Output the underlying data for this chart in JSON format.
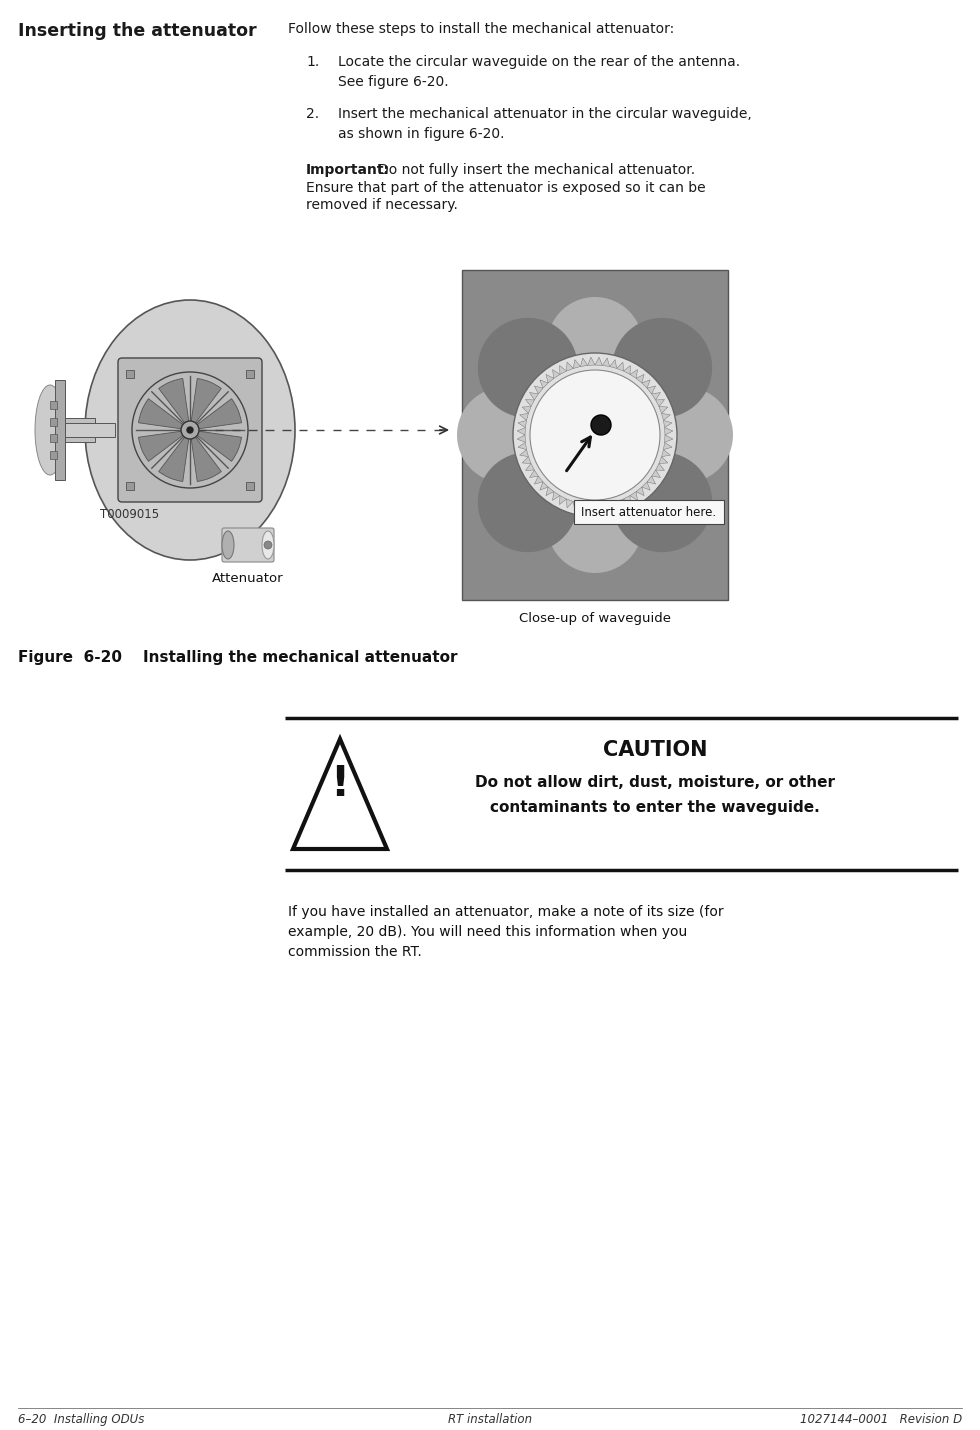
{
  "title_left": "Inserting the attenuator",
  "intro_text": "Follow these steps to install the mechanical attenuator:",
  "step1_num": "1.",
  "step1_text": "Locate the circular waveguide on the rear of the antenna.\nSee figure 6-20.",
  "step2_num": "2.",
  "step2_text": "Insert the mechanical attenuator in the circular waveguide,\nas shown in figure 6-20.",
  "important_bold": "Important:",
  "important_rest": " Do not fully insert the mechanical attenuator.\nEnsure that part of the attenuator is exposed so it can be\nremoved if necessary.",
  "figure_caption": "Figure  6-20    Installing the mechanical attenuator",
  "t_label": "T0009015",
  "attenuator_label": "Attenuator",
  "closeup_label": "Close-up of waveguide",
  "insert_label": "Insert attenuator here.",
  "caution_title": "CAUTION",
  "caution_line1": "Do not allow dirt, dust, moisture, or other",
  "caution_line2": "contaminants to enter the waveguide.",
  "post_text": "If you have installed an attenuator, make a note of its size (for\nexample, 20 dB). You will need this information when you\ncommission the RT.",
  "footer_left": "6–20  Installing ODUs",
  "footer_center": "RT installation",
  "footer_right": "1027144–0001   Revision D",
  "bg_color": "#ffffff",
  "text_color": "#1a1a1a",
  "dish_fill": "#d4d4d4",
  "dish_edge": "#555555",
  "housing_fill": "#c0c0c0",
  "spoke_fill": "#a0a0a0",
  "cw_bg": "#999999",
  "cw_lobe_dark": "#888888",
  "cw_lobe_light": "#b8b8b8",
  "cw_center_fill": "#f0f0f0",
  "caution_border_color": "#1a1a1a"
}
